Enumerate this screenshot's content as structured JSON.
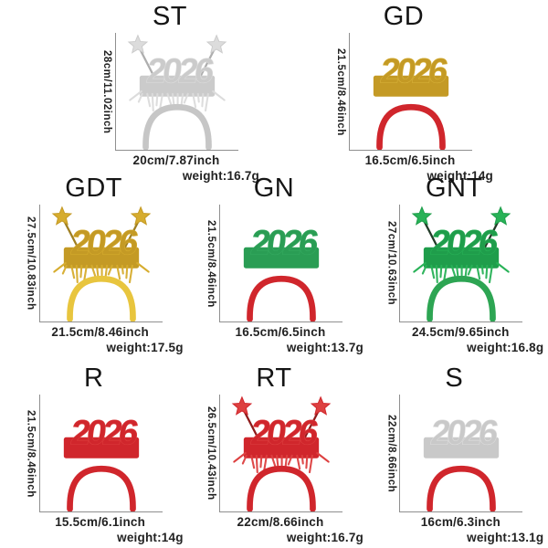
{
  "year_text": "2026",
  "colors": {
    "background": "#ffffff",
    "text": "#1a1a1a",
    "axis_line": "#8f8f8f"
  },
  "products": [
    {
      "row": 1,
      "code": "ST",
      "height": "28cm/11.02inch",
      "width": "20cm/7.87inch",
      "weight": "weight:16.7g",
      "glitter": "#cbcbcb",
      "band": "#c6c6c6",
      "stars": true,
      "tinsel": true,
      "accent": "#dcdcdc",
      "stick": "#aeaeae"
    },
    {
      "row": 1,
      "code": "GD",
      "height": "21.5cm/8.46inch",
      "width": "16.5cm/6.5inch",
      "weight": "weight:14g",
      "glitter": "#c49a25",
      "band": "#d0262c",
      "stars": false,
      "tinsel": false,
      "accent": "#d8b23a",
      "stick": "#9f7f22"
    },
    {
      "row": 2,
      "code": "GDT",
      "height": "27.5cm/10.83inch",
      "width": "21.5cm/8.46inch",
      "weight": "weight:17.5g",
      "glitter": "#c49a25",
      "band": "#e8c53e",
      "stars": true,
      "tinsel": true,
      "accent": "#d6ac2e",
      "stick": "#9f7f22"
    },
    {
      "row": 2,
      "code": "GN",
      "height": "21.5cm/8.46inch",
      "width": "16.5cm/6.5inch",
      "weight": "weight:13.7g",
      "glitter": "#2a9d54",
      "band": "#d0262c",
      "stars": false,
      "tinsel": false,
      "accent": "#35ab60",
      "stick": "#1c3a24"
    },
    {
      "row": 2,
      "code": "GNT",
      "height": "27cm/10.63inch",
      "width": "24.5cm/9.65inch",
      "weight": "weight:16.8g",
      "glitter": "#1f9d4b",
      "band": "#2da553",
      "stars": true,
      "tinsel": true,
      "accent": "#28b257",
      "stick": "#233b28"
    },
    {
      "row": 3,
      "code": "R",
      "height": "21.5cm/8.46inch",
      "width": "15.5cm/6.1inch",
      "weight": "weight:14g",
      "glitter": "#d0262c",
      "band": "#d0262c",
      "stars": false,
      "tinsel": false,
      "accent": "#dd3d3d",
      "stick": "#8e1b1b"
    },
    {
      "row": 3,
      "code": "RT",
      "height": "26.5cm/10.43inch",
      "width": "22cm/8.66inch",
      "weight": "weight:16.7g",
      "glitter": "#d0262c",
      "band": "#d0262c",
      "stars": true,
      "tinsel": true,
      "accent": "#dd4040",
      "stick": "#8e1b1b"
    },
    {
      "row": 3,
      "code": "S",
      "height": "22cm/8.66inch",
      "width": "16cm/6.3inch",
      "weight": "weight:13.1g",
      "glitter": "#c9c9c9",
      "band": "#d0262c",
      "stars": false,
      "tinsel": false,
      "accent": "#dedede",
      "stick": "#aeaeae"
    }
  ]
}
